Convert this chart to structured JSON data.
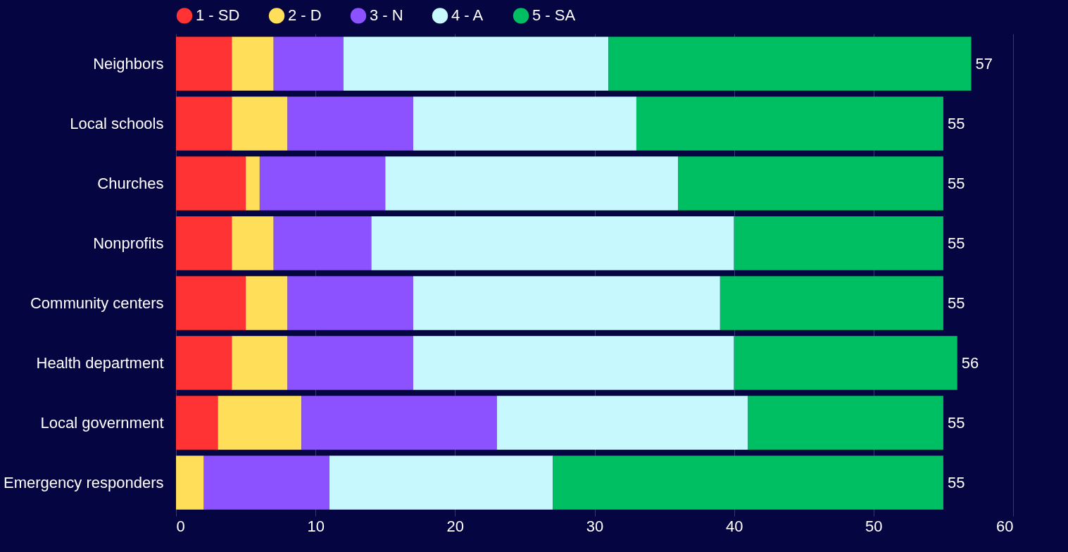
{
  "chart_data": {
    "type": "bar",
    "orientation": "horizontal",
    "stacked": true,
    "categories": [
      "Neighbors",
      "Local schools",
      "Churches",
      "Nonprofits",
      "Community centers",
      "Health department",
      "Local government",
      "Emergency responders"
    ],
    "series": [
      {
        "name": "1 - SD",
        "color": "#ff3333",
        "values": [
          4,
          4,
          5,
          4,
          5,
          4,
          3,
          0
        ]
      },
      {
        "name": "2 - D",
        "color": "#ffde59",
        "values": [
          3,
          4,
          1,
          3,
          3,
          4,
          6,
          2
        ]
      },
      {
        "name": "3 - N",
        "color": "#8c52ff",
        "values": [
          5,
          9,
          9,
          7,
          9,
          9,
          14,
          9
        ]
      },
      {
        "name": "4 - A",
        "color": "#c6f8fd",
        "values": [
          19,
          16,
          21,
          26,
          22,
          23,
          18,
          16
        ]
      },
      {
        "name": "5 - SA",
        "color": "#00bf63",
        "values": [
          26,
          22,
          19,
          15,
          16,
          16,
          14,
          28
        ]
      }
    ],
    "totals": [
      "57",
      "55",
      "55",
      "55",
      "55",
      "56",
      "55",
      "55"
    ],
    "xlim": [
      0,
      60
    ],
    "xticks": [
      0,
      10,
      20,
      30,
      40,
      50,
      60
    ],
    "grid": "x",
    "legend": "top"
  }
}
